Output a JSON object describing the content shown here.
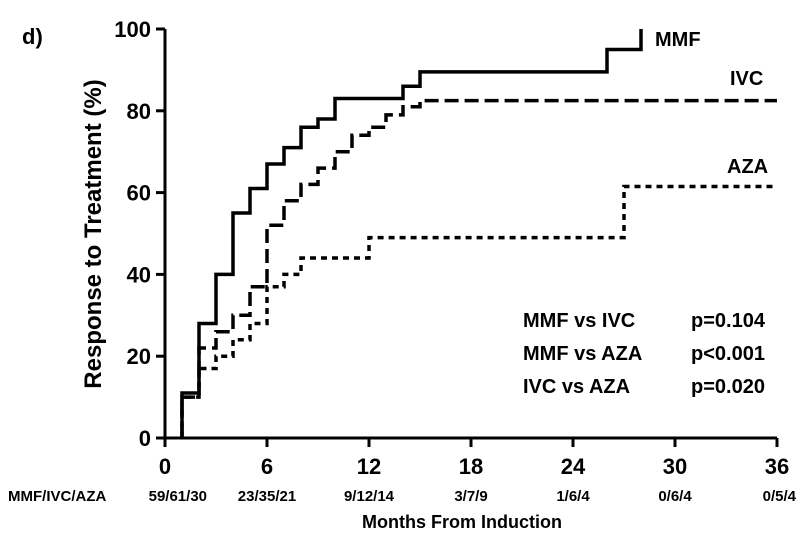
{
  "chart_data": {
    "type": "line",
    "panel_label": "d)",
    "xlabel": "Months From Induction",
    "ylabel": "Response to Treatment (%)",
    "xlim": [
      0,
      36
    ],
    "ylim": [
      0,
      100
    ],
    "x_ticks": [
      "0",
      "6",
      "12",
      "18",
      "24",
      "30",
      "36"
    ],
    "y_ticks": [
      "0",
      "20",
      "40",
      "60",
      "80",
      "100"
    ],
    "grid": false,
    "risk_table": {
      "label": "MMF/IVC/AZA",
      "values": [
        "59/61/30",
        "23/35/21",
        "9/12/14",
        "3/7/9",
        "1/6/4",
        "0/6/4",
        "0/5/4"
      ]
    },
    "series": [
      {
        "name": "MMF",
        "style": "solid",
        "points": [
          [
            1,
            0
          ],
          [
            1,
            11
          ],
          [
            2,
            11
          ],
          [
            2,
            28
          ],
          [
            3,
            28
          ],
          [
            3,
            40
          ],
          [
            4,
            40
          ],
          [
            4,
            55
          ],
          [
            5,
            55
          ],
          [
            5,
            61
          ],
          [
            6,
            61
          ],
          [
            6,
            67
          ],
          [
            7,
            67
          ],
          [
            7,
            71
          ],
          [
            8,
            71
          ],
          [
            8,
            76
          ],
          [
            9,
            76
          ],
          [
            9,
            78
          ],
          [
            10,
            78
          ],
          [
            10,
            83
          ],
          [
            14,
            83
          ],
          [
            14,
            86
          ],
          [
            15,
            86
          ],
          [
            15,
            89.5
          ],
          [
            26,
            89.5
          ],
          [
            26,
            95
          ],
          [
            28,
            95
          ],
          [
            28,
            100
          ]
        ]
      },
      {
        "name": "IVC",
        "style": "dashed",
        "points": [
          [
            1,
            0
          ],
          [
            1,
            10
          ],
          [
            2,
            10
          ],
          [
            2,
            22
          ],
          [
            3,
            22
          ],
          [
            3,
            26
          ],
          [
            4,
            26
          ],
          [
            4,
            30
          ],
          [
            5,
            30
          ],
          [
            5,
            37
          ],
          [
            6,
            37
          ],
          [
            6,
            52
          ],
          [
            7,
            52
          ],
          [
            7,
            58
          ],
          [
            8,
            58
          ],
          [
            8,
            62
          ],
          [
            9,
            62
          ],
          [
            9,
            66
          ],
          [
            10,
            66
          ],
          [
            10,
            70
          ],
          [
            11,
            70
          ],
          [
            11,
            74
          ],
          [
            12,
            74
          ],
          [
            12,
            76
          ],
          [
            13,
            76
          ],
          [
            13,
            79
          ],
          [
            14,
            79
          ],
          [
            14,
            81
          ],
          [
            15,
            81
          ],
          [
            15,
            82.5
          ],
          [
            36,
            82.5
          ]
        ]
      },
      {
        "name": "AZA",
        "style": "dotted",
        "points": [
          [
            1,
            0
          ],
          [
            1,
            10
          ],
          [
            2,
            10
          ],
          [
            2,
            17
          ],
          [
            3,
            17
          ],
          [
            3,
            20
          ],
          [
            4,
            20
          ],
          [
            4,
            24
          ],
          [
            5,
            24
          ],
          [
            5,
            28
          ],
          [
            6,
            28
          ],
          [
            6,
            37
          ],
          [
            7,
            37
          ],
          [
            7,
            40
          ],
          [
            8,
            40
          ],
          [
            8,
            44
          ],
          [
            12,
            44
          ],
          [
            12,
            49
          ],
          [
            27,
            49
          ],
          [
            27,
            61.5
          ],
          [
            36,
            61.5
          ]
        ]
      }
    ],
    "annotations": [
      {
        "label": "MMF vs IVC",
        "p": "p=0.104"
      },
      {
        "label": "MMF vs AZA",
        "p": "p<0.001"
      },
      {
        "label": "IVC vs AZA",
        "p": "p=0.020"
      }
    ]
  }
}
